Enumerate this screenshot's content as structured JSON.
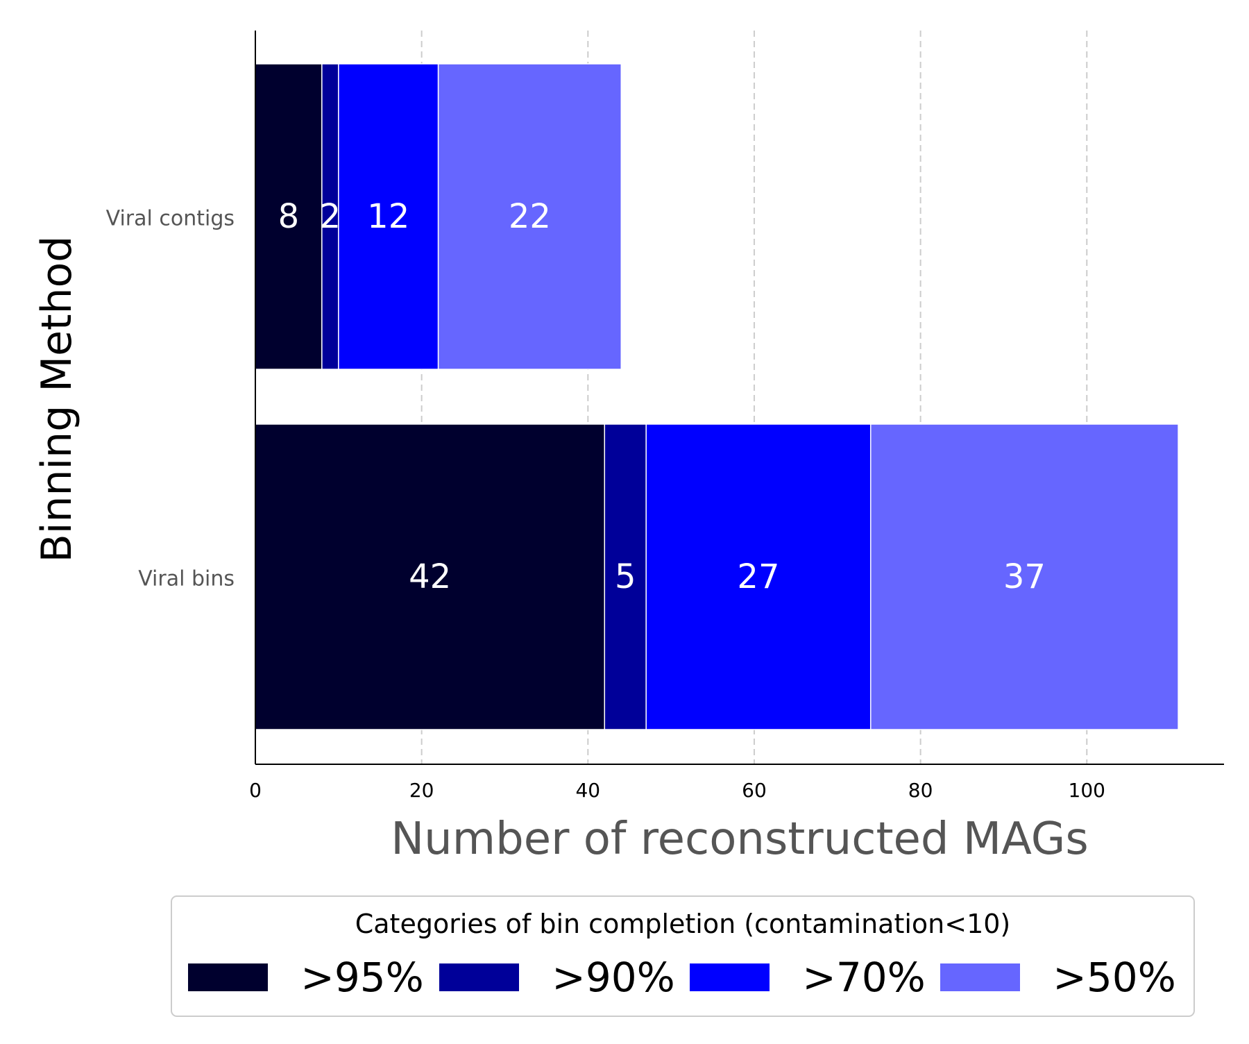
{
  "chart_data": {
    "type": "bar",
    "orientation": "horizontal",
    "stacked": true,
    "categories": [
      "Viral contigs",
      "Viral bins"
    ],
    "series": [
      {
        "name": ">95%",
        "values": [
          8,
          42
        ],
        "color": "#00002E"
      },
      {
        "name": ">90%",
        "values": [
          2,
          5
        ],
        "color": "#000099"
      },
      {
        "name": ">70%",
        "values": [
          12,
          27
        ],
        "color": "#0000FF"
      },
      {
        "name": ">50%",
        "values": [
          22,
          37
        ],
        "color": "#6666FF"
      }
    ],
    "data_labels": true,
    "xlabel": "Number of reconstructed MAGs",
    "ylabel": "Binning Method",
    "xlim": [
      0,
      116.5
    ],
    "xticks": [
      0,
      20,
      40,
      60,
      80,
      100
    ],
    "grid": "x dashed",
    "legend": {
      "title": "Categories of bin completion (contamination<10)",
      "placement": "bottom-center"
    }
  }
}
